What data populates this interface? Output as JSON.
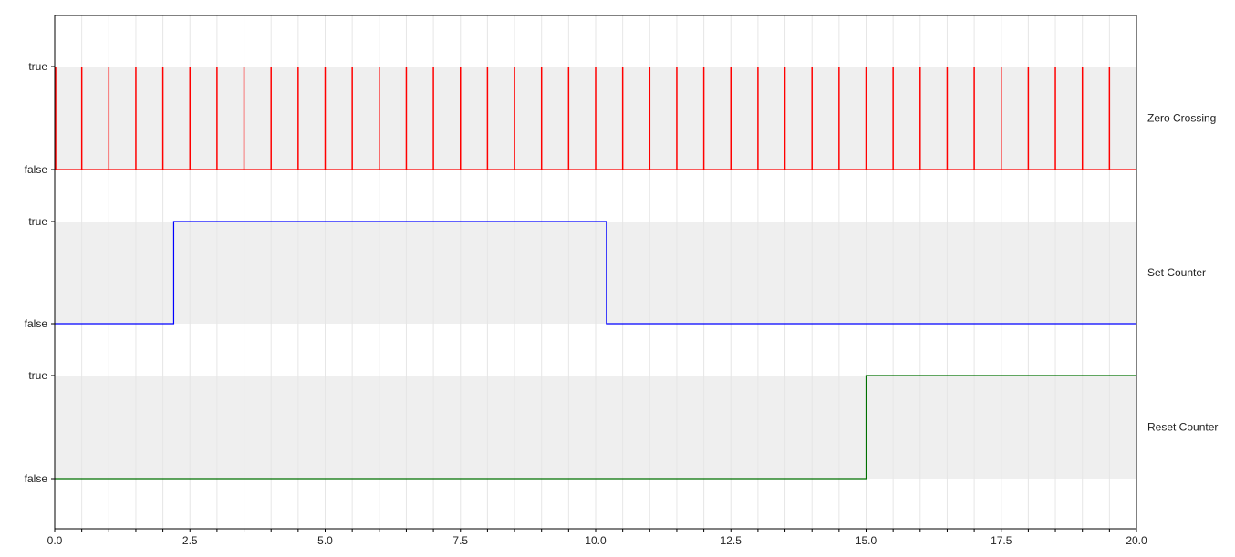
{
  "chart_data": {
    "type": "line",
    "subtype": "digital timing diagram (step)",
    "xlim": [
      0,
      20
    ],
    "x_ticks": [
      "0.0",
      "2.5",
      "5.0",
      "7.5",
      "10.0",
      "12.5",
      "15.0",
      "17.5",
      "20.0"
    ],
    "x_tick_values": [
      0,
      2.5,
      5,
      7.5,
      10,
      12.5,
      15,
      17.5,
      20
    ],
    "x_minor_step": 0.5,
    "grid": "vertical, every 0.5",
    "y_levels": [
      "false",
      "true"
    ],
    "band_color": "#efefef",
    "series": [
      {
        "name": "Zero Crossing",
        "color": "#ff0000",
        "kind": "pulses",
        "pulse_times": [
          0,
          0.5,
          1,
          1.5,
          2,
          2.5,
          3,
          3.5,
          4,
          4.5,
          5,
          5.5,
          6,
          6.5,
          7,
          7.5,
          8,
          8.5,
          9,
          9.5,
          10,
          10.5,
          11,
          11.5,
          12,
          12.5,
          13,
          13.5,
          14,
          14.5,
          15,
          15.5,
          16,
          16.5,
          17,
          17.5,
          18,
          18.5,
          19,
          19.5
        ],
        "baseline": "false"
      },
      {
        "name": "Set Counter",
        "color": "#0000ff",
        "kind": "step",
        "points": [
          [
            0,
            "false"
          ],
          [
            2.2,
            "true"
          ],
          [
            10.2,
            "false"
          ],
          [
            20,
            "false"
          ]
        ]
      },
      {
        "name": "Reset Counter",
        "color": "#007000",
        "kind": "step",
        "points": [
          [
            0,
            "false"
          ],
          [
            15.0,
            "true"
          ],
          [
            20,
            "true"
          ]
        ]
      }
    ]
  }
}
